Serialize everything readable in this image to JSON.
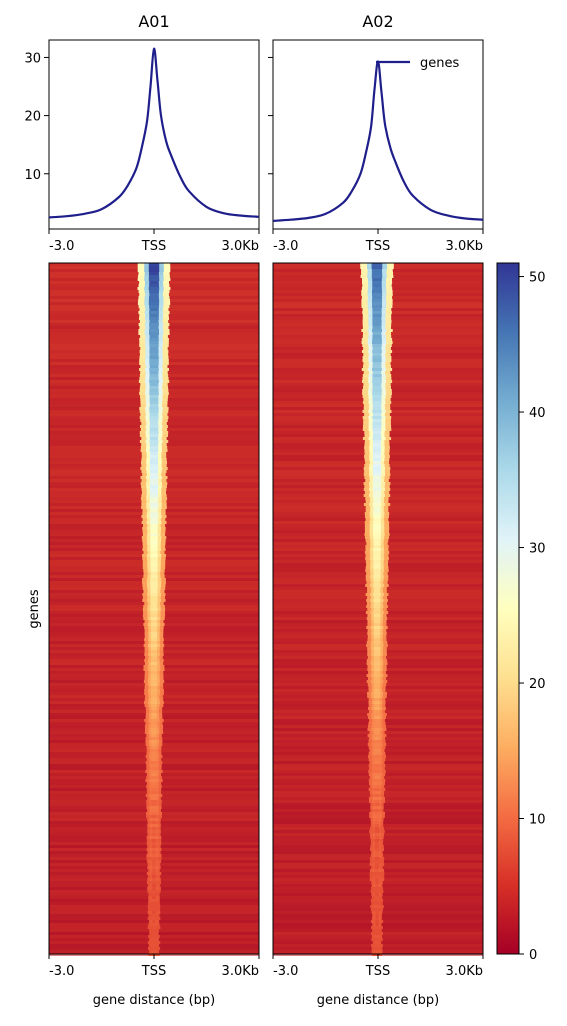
{
  "chart_data": [
    {
      "type": "line",
      "title": "A01",
      "x": [
        -3.0,
        -2.5,
        -2.0,
        -1.5,
        -1.0,
        -0.75,
        -0.5,
        -0.35,
        -0.2,
        -0.1,
        0.0,
        0.1,
        0.2,
        0.35,
        0.5,
        0.75,
        1.0,
        1.5,
        2.0,
        2.5,
        3.0
      ],
      "series": [
        {
          "values": [
            2.5,
            2.7,
            3.1,
            3.9,
            6.0,
            8.0,
            11.0,
            14.5,
            19.0,
            25.0,
            31.5,
            26.0,
            20.0,
            15.5,
            13.0,
            9.5,
            7.0,
            4.3,
            3.2,
            2.8,
            2.6
          ]
        }
      ],
      "ylim": [
        0.5,
        33
      ],
      "yticks": [
        "10",
        "20",
        "30"
      ],
      "xticks": [
        "-3.0",
        "TSS",
        "3.0Kb"
      ],
      "xlabel": ""
    },
    {
      "type": "line",
      "title": "A02",
      "x": [
        -3.0,
        -2.5,
        -2.0,
        -1.5,
        -1.0,
        -0.75,
        -0.5,
        -0.35,
        -0.2,
        -0.1,
        0.0,
        0.1,
        0.2,
        0.35,
        0.5,
        0.75,
        1.0,
        1.5,
        2.0,
        2.5,
        3.0
      ],
      "series": [
        {
          "name": "genes",
          "values": [
            1.9,
            2.1,
            2.4,
            3.1,
            5.0,
            7.0,
            10.0,
            13.5,
            18.0,
            24.5,
            29.3,
            24.0,
            18.5,
            14.5,
            12.0,
            8.5,
            6.2,
            3.8,
            2.8,
            2.3,
            2.1
          ]
        }
      ],
      "ylim": [
        0.5,
        33
      ],
      "xticks": [
        "-3.0",
        "TSS",
        "3.0Kb"
      ],
      "legend": "top-right",
      "xlabel": ""
    },
    {
      "type": "heatmap",
      "title": "",
      "panels": [
        "A01",
        "A02"
      ],
      "ylabel": "genes",
      "xlabel": "gene distance (bp)",
      "xticks": [
        "-3.0",
        "TSS",
        "3.0Kb"
      ],
      "colorbar": {
        "min": 0,
        "max": 51,
        "ticks": [
          "0",
          "10",
          "20",
          "30",
          "40",
          "50"
        ],
        "colormap": [
          "#a50026",
          "#d73027",
          "#f46d43",
          "#fdae61",
          "#fee090",
          "#ffffbf",
          "#e0f3f8",
          "#abd9e9",
          "#74add1",
          "#4575b4",
          "#313695"
        ]
      }
    }
  ],
  "colors": {
    "line": "#1f1f8c",
    "heat_background": "#c22b2b"
  }
}
